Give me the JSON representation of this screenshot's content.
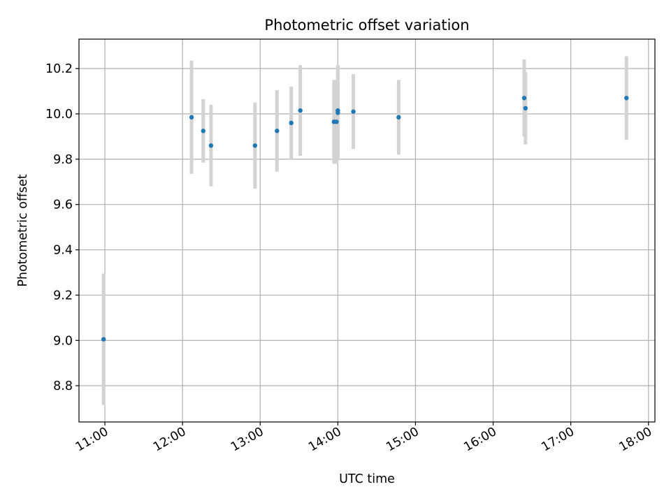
{
  "chart_data": {
    "type": "scatter",
    "title": "Photometric offset variation",
    "xlabel": "UTC time",
    "ylabel": "Photometric offset",
    "x_tick_labels": [
      "11:00",
      "12:00",
      "13:00",
      "14:00",
      "15:00",
      "16:00",
      "17:00",
      "18:00"
    ],
    "y_tick_labels": [
      "8.8",
      "9.0",
      "9.2",
      "9.4",
      "9.6",
      "9.8",
      "10.0",
      "10.2"
    ],
    "xlim": [
      "10:40",
      "18:05"
    ],
    "ylim": [
      8.64,
      10.33
    ],
    "grid": true,
    "colors": {
      "point": "#1f77b4",
      "errorbar": "#d3d3d3",
      "grid": "#b0b0b0"
    },
    "points": [
      {
        "time": "10:59",
        "y": 9.005,
        "yerr": 0.29
      },
      {
        "time": "12:07",
        "y": 9.985,
        "yerr": 0.25
      },
      {
        "time": "12:16",
        "y": 9.925,
        "yerr": 0.14
      },
      {
        "time": "12:22",
        "y": 9.86,
        "yerr": 0.18
      },
      {
        "time": "12:56",
        "y": 9.86,
        "yerr": 0.19
      },
      {
        "time": "13:13",
        "y": 9.925,
        "yerr": 0.18
      },
      {
        "time": "13:24",
        "y": 9.96,
        "yerr": 0.16
      },
      {
        "time": "13:31",
        "y": 10.015,
        "yerr": 0.2
      },
      {
        "time": "13:57",
        "y": 9.965,
        "yerr": 0.185
      },
      {
        "time": "13:59",
        "y": 9.965,
        "yerr": 0.185
      },
      {
        "time": "14:00",
        "y": 10.005,
        "yerr": 0.21
      },
      {
        "time": "14:00",
        "y": 10.015,
        "yerr": 0.2
      },
      {
        "time": "14:12",
        "y": 10.01,
        "yerr": 0.165
      },
      {
        "time": "14:47",
        "y": 9.985,
        "yerr": 0.165
      },
      {
        "time": "16:24",
        "y": 10.07,
        "yerr": 0.17
      },
      {
        "time": "16:25",
        "y": 10.025,
        "yerr": 0.16
      },
      {
        "time": "17:43",
        "y": 10.07,
        "yerr": 0.185
      }
    ]
  }
}
